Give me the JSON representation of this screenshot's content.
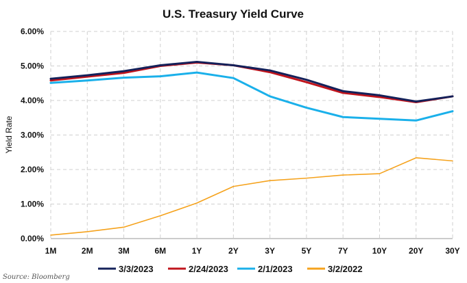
{
  "chart_data": {
    "type": "line",
    "title": "U.S. Treasury Yield Curve",
    "xlabel": "",
    "ylabel": "Yield Rate",
    "categories": [
      "1M",
      "2M",
      "3M",
      "6M",
      "1Y",
      "2Y",
      "3Y",
      "5Y",
      "7Y",
      "10Y",
      "20Y",
      "30Y"
    ],
    "ylim": [
      0,
      6
    ],
    "yticks": [
      "0.00%",
      "1.00%",
      "2.00%",
      "3.00%",
      "4.00%",
      "5.00%",
      "6.00%"
    ],
    "grid": true,
    "legend_position": "bottom",
    "series": [
      {
        "name": "3/3/2023",
        "color": "#14215a",
        "values": [
          4.63,
          4.73,
          4.85,
          5.02,
          5.12,
          5.02,
          4.87,
          4.6,
          4.27,
          4.15,
          3.97,
          4.12
        ]
      },
      {
        "name": "2/24/2023",
        "color": "#c0141c",
        "values": [
          4.58,
          4.69,
          4.8,
          5.0,
          5.1,
          5.02,
          4.82,
          4.53,
          4.22,
          4.1,
          3.95,
          4.12
        ]
      },
      {
        "name": "2/1/2023",
        "color": "#1ab0ea",
        "values": [
          4.51,
          4.58,
          4.66,
          4.7,
          4.81,
          4.65,
          4.12,
          3.79,
          3.52,
          3.47,
          3.42,
          3.69
        ]
      },
      {
        "name": "3/2/2022",
        "color": "#f5a21c",
        "values": [
          0.1,
          0.2,
          0.33,
          0.66,
          1.03,
          1.51,
          1.68,
          1.75,
          1.84,
          1.88,
          2.34,
          2.25
        ]
      }
    ]
  },
  "source": "Source: Bloomberg"
}
